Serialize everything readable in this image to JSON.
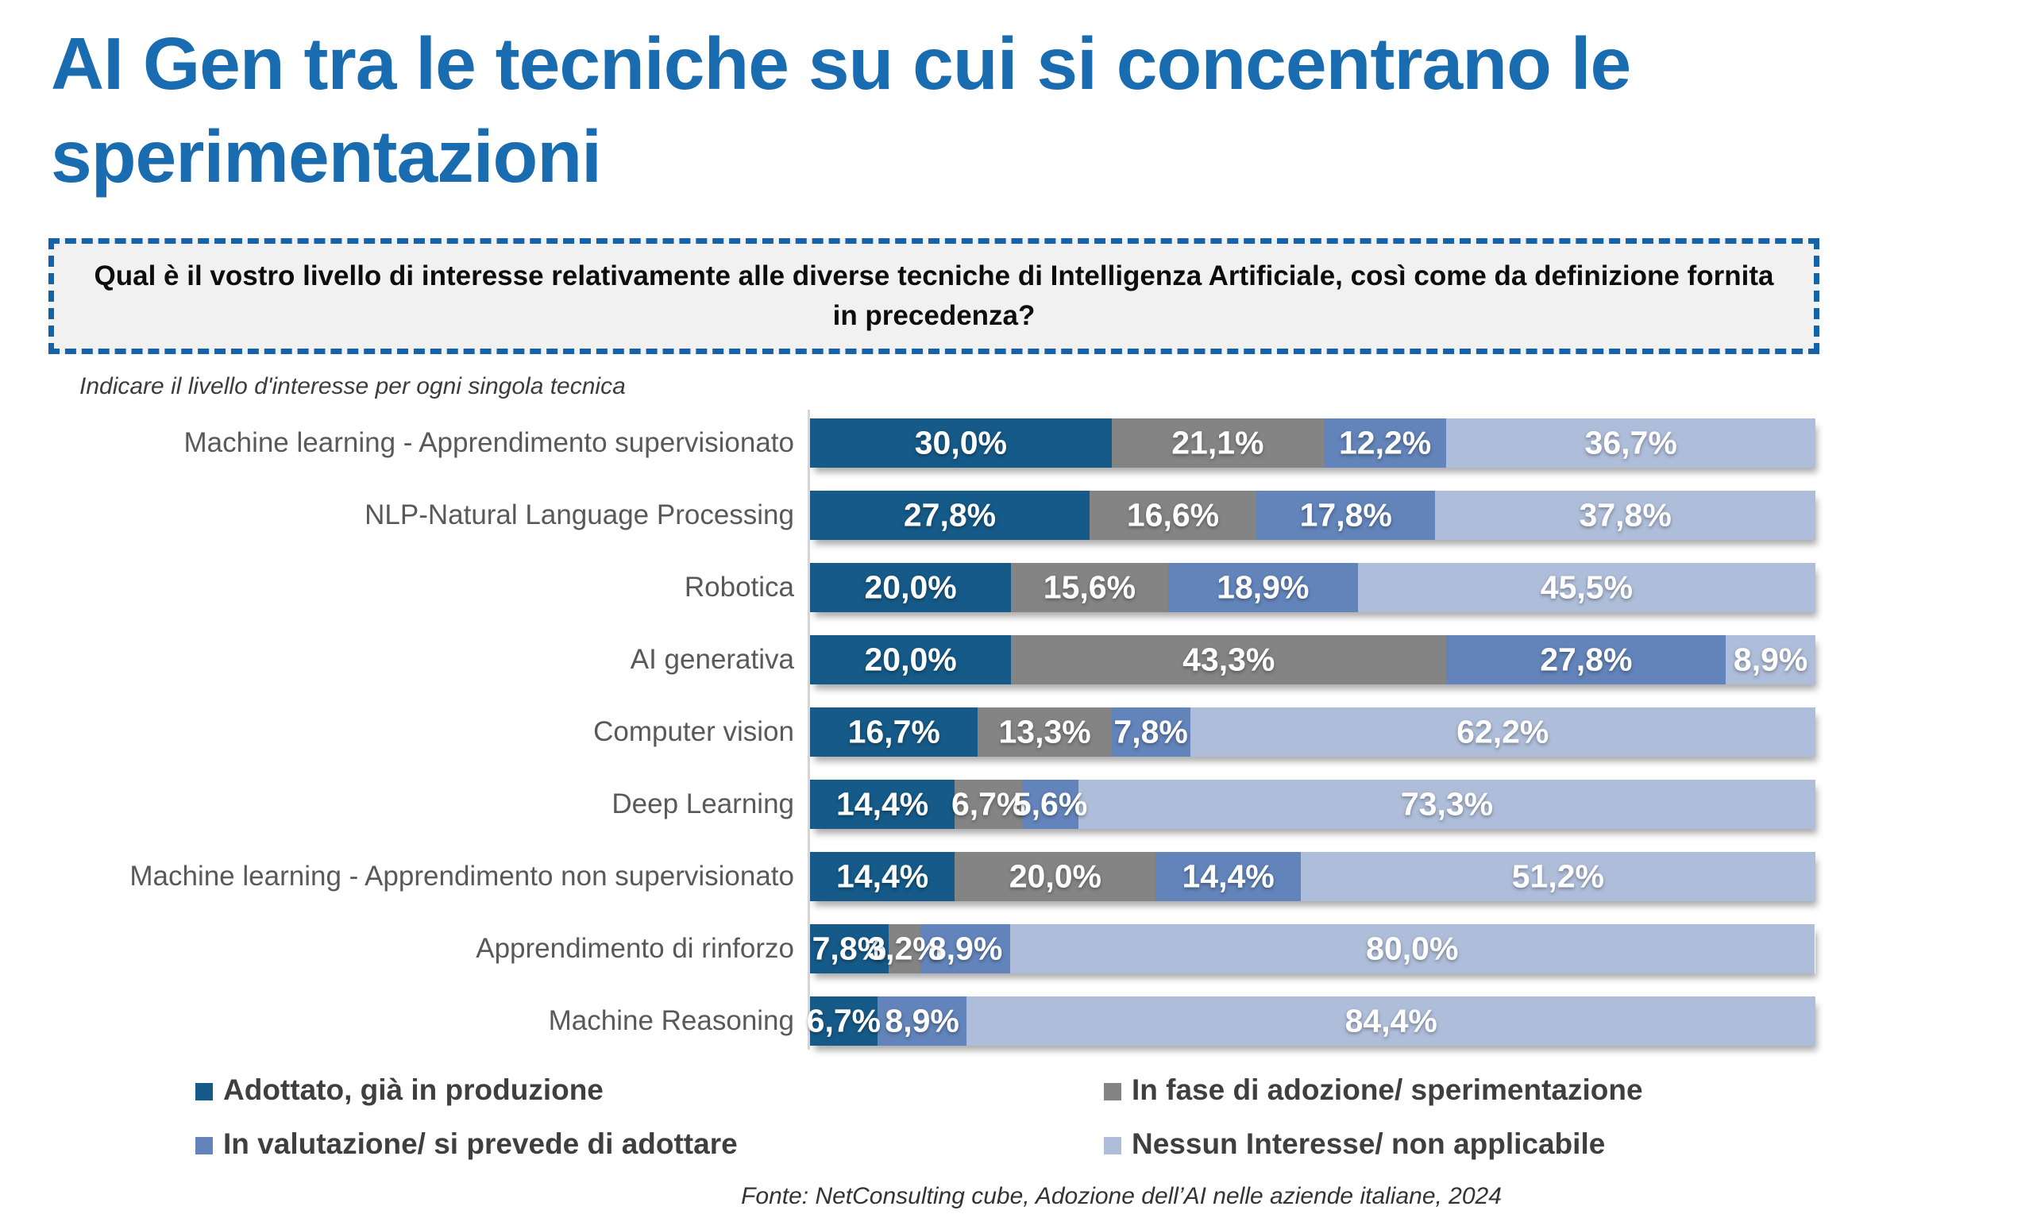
{
  "title": "AI Gen tra le tecniche su cui si concentrano le sperimentazioni",
  "question": "Qual è il vostro livello di interesse relativamente alle diverse tecniche di Intelligenza Artificiale, così come da definizione fornita in precedenza?",
  "instruction": "Indicare il livello d'interesse per ogni singola tecnica",
  "source": "Fonte: NetConsulting cube,  Adozione dell’AI nelle aziende italiane, 2024",
  "colors": {
    "title_blue": "#1a6cb0",
    "box_border_blue": "#1562a8",
    "box_background": "#f1f1f1",
    "category_label_gray": "#595959",
    "legend_text_gray": "#3f3f3f",
    "value_label_white": "#ffffff",
    "series_adottato": "#155a88",
    "series_in_fase": "#848484",
    "series_in_valutazione": "#6284ba",
    "series_nessun_interesse": "#aebdd9"
  },
  "legend": [
    {
      "label": "Adottato, già in produzione",
      "color": "#155a88"
    },
    {
      "label": "In fase di adozione/ sperimentazione",
      "color": "#848484"
    },
    {
      "label": "In valutazione/ si prevede di adottare",
      "color": "#6284ba"
    },
    {
      "label": "Nessun Interesse/ non applicabile",
      "color": "#aebdd9"
    }
  ],
  "chart_data": {
    "type": "bar",
    "orientation": "horizontal",
    "stacked": true,
    "unit": "%",
    "xlim": [
      0,
      100
    ],
    "grid": false,
    "legend_position": "bottom",
    "categories": [
      "Machine learning - Apprendimento supervisionato",
      "NLP-Natural Language Processing",
      "Robotica",
      "AI generativa",
      "Computer vision",
      "Deep Learning",
      "Machine learning - Apprendimento non supervisionato",
      "Apprendimento di rinforzo",
      "Machine Reasoning"
    ],
    "series": [
      {
        "name": "Adottato, già in produzione",
        "color": "#155a88",
        "values": [
          30.0,
          27.8,
          20.0,
          20.0,
          16.7,
          14.4,
          14.4,
          7.8,
          6.7
        ]
      },
      {
        "name": "In fase di adozione/ sperimentazione",
        "color": "#848484",
        "values": [
          21.1,
          16.6,
          15.6,
          43.3,
          13.3,
          6.7,
          20.0,
          3.2,
          0.0
        ]
      },
      {
        "name": "In valutazione/ si prevede di adottare",
        "color": "#6284ba",
        "values": [
          12.2,
          17.8,
          18.9,
          27.8,
          7.8,
          5.6,
          14.4,
          8.9,
          8.9
        ]
      },
      {
        "name": "Nessun Interesse/ non applicabile",
        "color": "#aebdd9",
        "values": [
          36.7,
          37.8,
          45.5,
          8.9,
          62.2,
          73.3,
          51.2,
          80.0,
          84.4
        ]
      }
    ],
    "value_labels": [
      [
        "30,0%",
        "21,1%",
        "12,2%",
        "36,7%"
      ],
      [
        "27,8%",
        "16,6%",
        "17,8%",
        "37,8%"
      ],
      [
        "20,0%",
        "15,6%",
        "18,9%",
        "45,5%"
      ],
      [
        "20,0%",
        "43,3%",
        "27,8%",
        "8,9%"
      ],
      [
        "16,7%",
        "13,3%",
        "7,8%",
        "62,2%"
      ],
      [
        "14,4%",
        "6,7%",
        "5,6%",
        "73,3%"
      ],
      [
        "14,4%",
        "20,0%",
        "14,4%",
        "51,2%"
      ],
      [
        "7,8%",
        "3,2%",
        "8,9%",
        "80,0%"
      ],
      [
        "6,7%",
        "",
        "8,9%",
        "84,4%"
      ]
    ]
  },
  "layout": {
    "row_top_start": 527,
    "row_pitch": 91
  }
}
